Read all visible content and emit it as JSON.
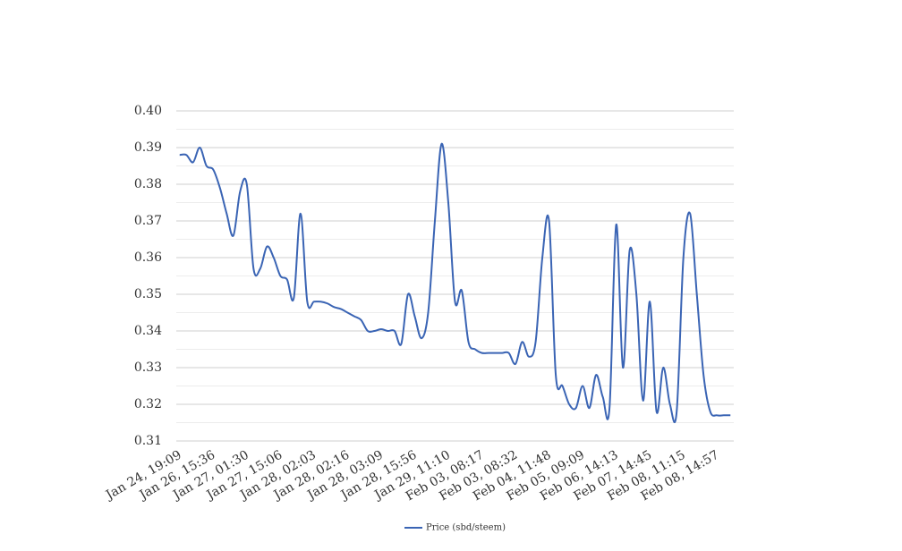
{
  "chart_data": {
    "type": "line",
    "categories": [
      "Jan 24, 19:09",
      null,
      null,
      null,
      null,
      "Jan 26, 15:36",
      null,
      null,
      null,
      null,
      "Jan 27, 01:30",
      null,
      null,
      null,
      null,
      "Jan 27, 15:06",
      null,
      null,
      null,
      null,
      "Jan 28, 02:03",
      null,
      null,
      null,
      null,
      "Jan 28, 02:16",
      null,
      null,
      null,
      null,
      "Jan 28, 03:09",
      null,
      null,
      null,
      null,
      "Jan 28, 15:56",
      null,
      null,
      null,
      null,
      "Jan 29, 11:10",
      null,
      null,
      null,
      null,
      "Feb 03, 08:17",
      null,
      null,
      null,
      null,
      "Feb 03, 08:32",
      null,
      null,
      null,
      null,
      "Feb 04, 11:48",
      null,
      null,
      null,
      null,
      "Feb 05, 09:09",
      null,
      null,
      null,
      null,
      "Feb 06, 14:13",
      null,
      null,
      null,
      null,
      "Feb 07, 14:45",
      null,
      null,
      null,
      null,
      "Feb 08, 11:15",
      null,
      null,
      null,
      null,
      "Feb 08, 14:57",
      null,
      null
    ],
    "series": [
      {
        "name": "Price (sbd/steem)",
        "color": "#3a64b4",
        "values": [
          0.388,
          0.388,
          0.386,
          0.39,
          0.385,
          0.384,
          0.379,
          0.372,
          0.366,
          0.378,
          0.38,
          0.357,
          0.357,
          0.363,
          0.36,
          0.355,
          0.354,
          0.349,
          0.372,
          0.348,
          0.348,
          0.348,
          0.3475,
          0.3465,
          0.346,
          0.345,
          0.344,
          0.343,
          0.34,
          0.34,
          0.3405,
          0.34,
          0.34,
          0.3365,
          0.35,
          0.344,
          0.338,
          0.345,
          0.37,
          0.391,
          0.375,
          0.348,
          0.351,
          0.337,
          0.335,
          0.334,
          0.334,
          0.334,
          0.334,
          0.334,
          0.331,
          0.337,
          0.333,
          0.337,
          0.36,
          0.37,
          0.328,
          0.325,
          0.32,
          0.319,
          0.325,
          0.319,
          0.328,
          0.322,
          0.319,
          0.369,
          0.33,
          0.362,
          0.35,
          0.321,
          0.348,
          0.318,
          0.33,
          0.32,
          0.318,
          0.36,
          0.372,
          0.35,
          0.328,
          0.318,
          0.317,
          0.317,
          0.317
        ]
      }
    ],
    "ylim": [
      0.31,
      0.4
    ],
    "yticks": [
      0.31,
      0.32,
      0.33,
      0.34,
      0.35,
      0.36,
      0.37,
      0.38,
      0.39,
      {
        "value": 0.4,
        "label": "0.40"
      }
    ],
    "grid": true,
    "legend": "bottom"
  }
}
